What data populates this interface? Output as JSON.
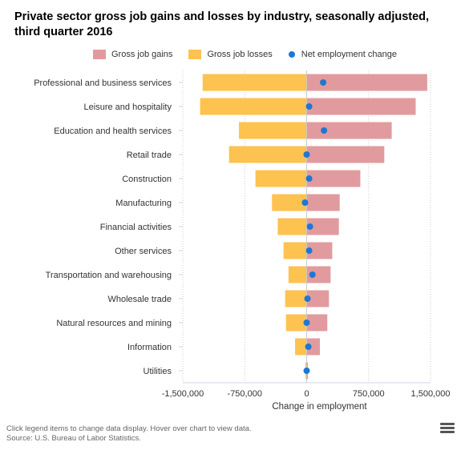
{
  "title": "Private sector gross job gains and losses by industry, seasonally adjusted, third quarter 2016",
  "legend": {
    "gains": "Gross job gains",
    "losses": "Gross job losses",
    "net": "Net employment change"
  },
  "colors": {
    "gains": "#e19b9e",
    "losses": "#fdc250",
    "net": "#1f77d4"
  },
  "footer": {
    "note": "Click legend items to change data display. Hover over chart to view data.",
    "source": "Source: U.S. Bureau of Labor Statistics."
  },
  "chart_data": {
    "type": "bar",
    "orientation": "horizontal",
    "categories": [
      "Professional and business services",
      "Leisure and hospitality",
      "Education and health services",
      "Retail trade",
      "Construction",
      "Manufacturing",
      "Financial activities",
      "Other services",
      "Transportation and warehousing",
      "Wholesale trade",
      "Natural resources and mining",
      "Information",
      "Utilities"
    ],
    "series": [
      {
        "name": "Gross job gains",
        "values": [
          1460000,
          1320000,
          1030000,
          940000,
          650000,
          400000,
          390000,
          310000,
          290000,
          270000,
          250000,
          160000,
          15000
        ]
      },
      {
        "name": "Gross job losses",
        "values": [
          -1260000,
          -1290000,
          -820000,
          -940000,
          -620000,
          -420000,
          -350000,
          -280000,
          -220000,
          -260000,
          -250000,
          -140000,
          -15000
        ]
      },
      {
        "name": "Net employment change",
        "values": [
          200000,
          30000,
          210000,
          0,
          30000,
          -20000,
          40000,
          30000,
          70000,
          10000,
          0,
          20000,
          0
        ]
      }
    ],
    "xlabel": "Change in employment",
    "ylabel": "",
    "xlim": [
      -1500000,
      1500000
    ],
    "xticks": [
      -1500000,
      -750000,
      0,
      750000,
      1500000
    ],
    "xtick_labels": [
      "-1,500,000",
      "-750,000",
      "0",
      "750,000",
      "1,500,000"
    ],
    "grid": true,
    "legend_position": "top"
  }
}
